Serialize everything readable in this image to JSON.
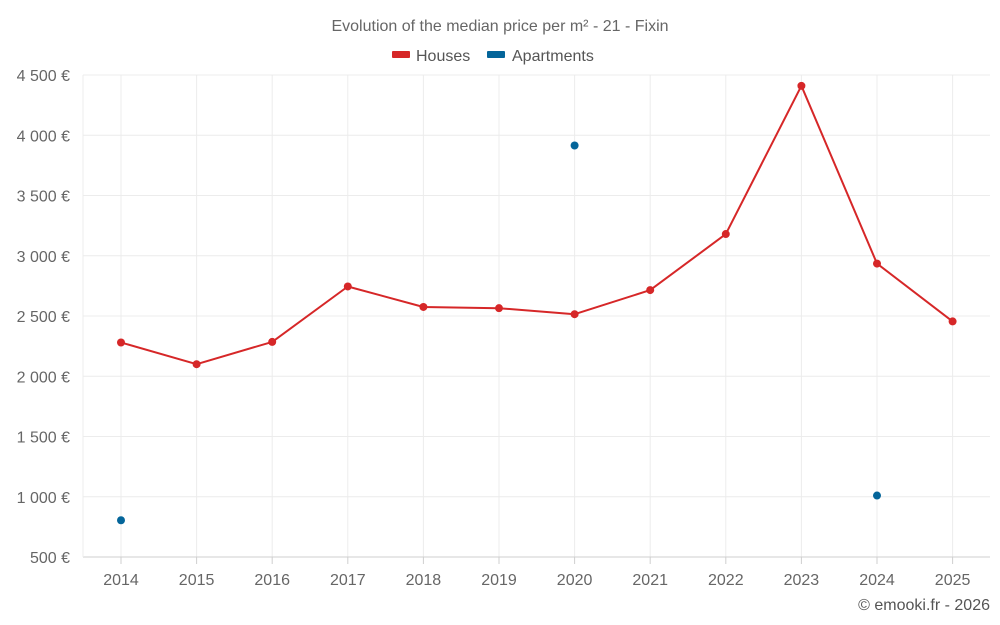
{
  "chart_data": {
    "type": "line",
    "title": "Evolution of the median price per m² - 21 - Fixin",
    "categories": [
      "2014",
      "2015",
      "2016",
      "2017",
      "2018",
      "2019",
      "2020",
      "2021",
      "2022",
      "2023",
      "2024",
      "2025"
    ],
    "y_ticks": [
      500,
      1000,
      1500,
      2000,
      2500,
      3000,
      3500,
      4000,
      4500
    ],
    "y_tick_labels": [
      "500 €",
      "1 000 €",
      "1 500 €",
      "2 000 €",
      "2 500 €",
      "3 000 €",
      "3 500 €",
      "4 000 €",
      "4 500 €"
    ],
    "ylim": [
      500,
      4500
    ],
    "xlabel": "",
    "ylabel": "",
    "grid": true,
    "legend_position": "top-center",
    "series": [
      {
        "name": "Houses",
        "color": "#d62728",
        "style": "line+markers",
        "values": [
          2280,
          2100,
          2285,
          2745,
          2575,
          2565,
          2515,
          2715,
          3180,
          4410,
          2935,
          2455
        ]
      },
      {
        "name": "Apartments",
        "color": "#04659a",
        "style": "markers",
        "values": [
          805,
          null,
          null,
          null,
          null,
          null,
          3915,
          null,
          null,
          null,
          1010,
          null
        ]
      }
    ],
    "credit": "© emooki.fr - 2026"
  }
}
